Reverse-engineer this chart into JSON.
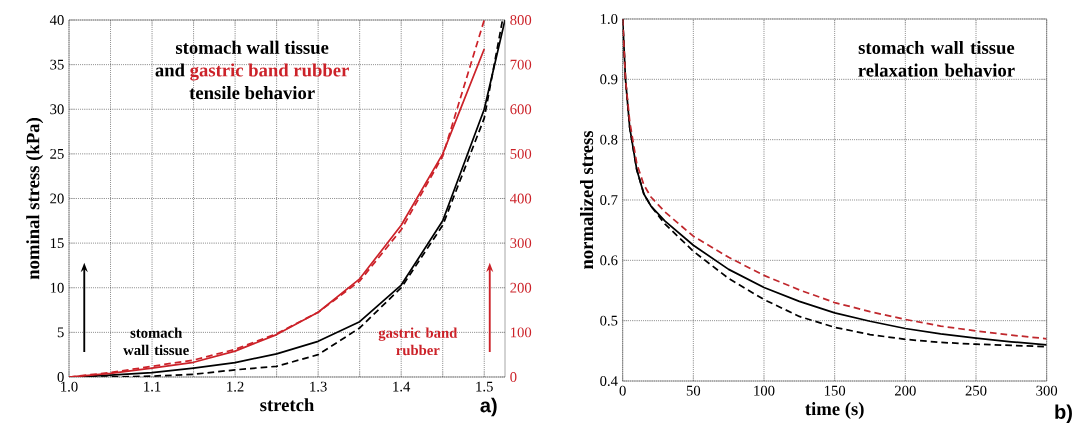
{
  "chart_data": [
    {
      "type": "line",
      "xlabel": "stretch",
      "ylabel": "nominal stress (kPa)",
      "xlim": [
        1.0,
        1.525
      ],
      "ylim": [
        0,
        40
      ],
      "y2lim": [
        0,
        800
      ],
      "xticks": [
        {
          "value": 1.0,
          "label": "1.0"
        },
        {
          "value": 1.05,
          "label": null
        },
        1.1,
        {
          "value": 1.15,
          "label": null
        },
        1.2,
        {
          "value": 1.25,
          "label": null
        },
        1.3,
        {
          "value": 1.35,
          "label": null
        },
        1.4,
        {
          "value": 1.45,
          "label": null
        },
        1.5
      ],
      "yticks": [
        0,
        5,
        10,
        15,
        20,
        25,
        30,
        35,
        40
      ],
      "y2ticks": [
        0,
        100,
        200,
        300,
        400,
        500,
        600,
        700,
        800
      ],
      "grid": true,
      "annotations": [
        "stomach wall tissue",
        "and",
        "gastric band rubber",
        "tensile behavior",
        "stomach wall tissue",
        "gastric band rubber",
        "a)"
      ],
      "series": [
        {
          "color": "#000000",
          "line_style": "solid",
          "x": [
            1.0,
            1.05,
            1.1,
            1.15,
            1.2,
            1.25,
            1.3,
            1.35,
            1.4,
            1.45,
            1.5,
            1.525
          ],
          "values": [
            0,
            0.2,
            0.5,
            1.0,
            1.6,
            2.6,
            4.0,
            6.2,
            10.3,
            17.5,
            30,
            40
          ]
        },
        {
          "color": "#000000",
          "line_style": "dashed",
          "x": [
            1.0,
            1.05,
            1.1,
            1.15,
            1.2,
            1.25,
            1.3,
            1.35,
            1.4,
            1.45,
            1.5,
            1.522
          ],
          "values": [
            0,
            0,
            0.1,
            0.3,
            0.8,
            1.2,
            2.5,
            5.5,
            10,
            17,
            29,
            40
          ]
        },
        {
          "color": "#cc2229",
          "line_style": "solid",
          "axis": "y2",
          "x": [
            1.0,
            1.05,
            1.1,
            1.15,
            1.2,
            1.25,
            1.3,
            1.35,
            1.4,
            1.45,
            1.5
          ],
          "values": [
            0,
            8,
            20,
            33,
            58,
            95,
            145,
            220,
            340,
            500,
            735
          ]
        },
        {
          "color": "#cc2229",
          "line_style": "dashed",
          "axis": "y2",
          "x": [
            1.0,
            1.05,
            1.1,
            1.15,
            1.2,
            1.25,
            1.3,
            1.35,
            1.4,
            1.45,
            1.5
          ],
          "values": [
            0,
            10,
            24,
            38,
            62,
            97,
            145,
            215,
            330,
            495,
            800
          ]
        }
      ]
    },
    {
      "type": "line",
      "xlabel": "time (s)",
      "ylabel": "normalized stress",
      "xlim": [
        0,
        300
      ],
      "ylim": [
        0.4,
        1.0
      ],
      "xticks": [
        0,
        50,
        100,
        150,
        200,
        250,
        300
      ],
      "yticks": [
        0.4,
        0.5,
        0.6,
        0.7,
        0.8,
        0.9,
        {
          "value": 1.0,
          "label": "1.0"
        }
      ],
      "grid": true,
      "annotations": [
        "stomach wall tissue relaxation behavior",
        "b)"
      ],
      "series": [
        {
          "color": "#000000",
          "line_style": "solid",
          "x": [
            0,
            2,
            5,
            10,
            15,
            20,
            30,
            50,
            75,
            100,
            125,
            150,
            175,
            200,
            225,
            250,
            275,
            300
          ],
          "values": [
            1.0,
            0.9,
            0.82,
            0.75,
            0.71,
            0.69,
            0.665,
            0.625,
            0.585,
            0.555,
            0.532,
            0.513,
            0.499,
            0.487,
            0.478,
            0.471,
            0.465,
            0.46
          ]
        },
        {
          "color": "#000000",
          "line_style": "dashed",
          "x": [
            0,
            2,
            5,
            10,
            15,
            20,
            30,
            50,
            75,
            100,
            125,
            150,
            175,
            200,
            225,
            250,
            275,
            300
          ],
          "values": [
            1.0,
            0.9,
            0.82,
            0.75,
            0.71,
            0.69,
            0.66,
            0.615,
            0.57,
            0.535,
            0.507,
            0.489,
            0.477,
            0.469,
            0.464,
            0.461,
            0.459,
            0.457
          ]
        },
        {
          "color": "#c0282d",
          "line_style": "dashed",
          "x": [
            0,
            2,
            5,
            10,
            15,
            20,
            30,
            50,
            75,
            100,
            125,
            150,
            175,
            200,
            225,
            250,
            275,
            300
          ],
          "values": [
            1.0,
            0.9,
            0.83,
            0.76,
            0.725,
            0.705,
            0.68,
            0.64,
            0.605,
            0.575,
            0.551,
            0.53,
            0.515,
            0.502,
            0.491,
            0.483,
            0.476,
            0.47
          ]
        }
      ]
    }
  ]
}
